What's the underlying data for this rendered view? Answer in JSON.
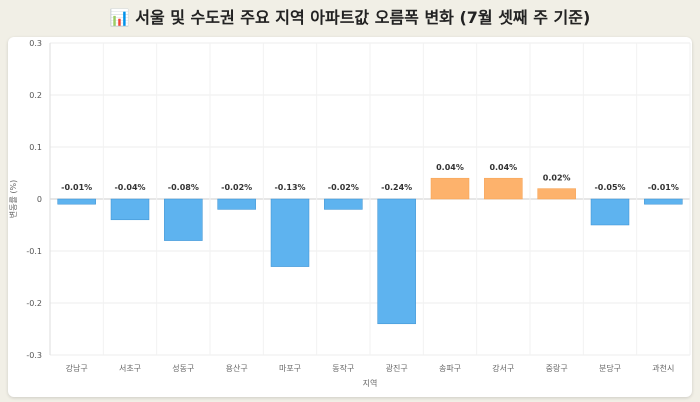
{
  "title": "서울 및 수도권 주요 지역 아파트값 오름폭 변화 (7월 셋째 주 기준)",
  "title_icon": "bar-chart-icon",
  "chart_data": {
    "type": "bar",
    "title": "서울 및 수도권 주요 지역 아파트값 오름폭 변화 (7월 셋째 주 기준)",
    "xlabel": "지역",
    "ylabel": "변동률 (%)",
    "ylim": [
      -0.3,
      0.3
    ],
    "yticks": [
      "0.3",
      "0.2",
      "0.1",
      "0",
      "-0.1",
      "-0.2",
      "-0.3"
    ],
    "ytick_values": [
      0.3,
      0.2,
      0.1,
      0,
      -0.1,
      -0.2,
      -0.3
    ],
    "categories": [
      "강남구",
      "서초구",
      "성동구",
      "용산구",
      "마포구",
      "동작구",
      "광진구",
      "송파구",
      "강서구",
      "중랑구",
      "분당구",
      "과천시"
    ],
    "values": [
      -0.01,
      -0.04,
      -0.08,
      -0.02,
      -0.13,
      -0.02,
      -0.24,
      0.04,
      0.04,
      0.02,
      -0.05,
      -0.01
    ],
    "labels": [
      "-0.01%",
      "-0.04%",
      "-0.08%",
      "-0.02%",
      "-0.13%",
      "-0.02%",
      "-0.24%",
      "0.04%",
      "0.04%",
      "0.02%",
      "-0.05%",
      "-0.01%"
    ],
    "grid": true,
    "colors": {
      "negative": "#5eb3ef",
      "positive": "#fdb26c"
    }
  }
}
